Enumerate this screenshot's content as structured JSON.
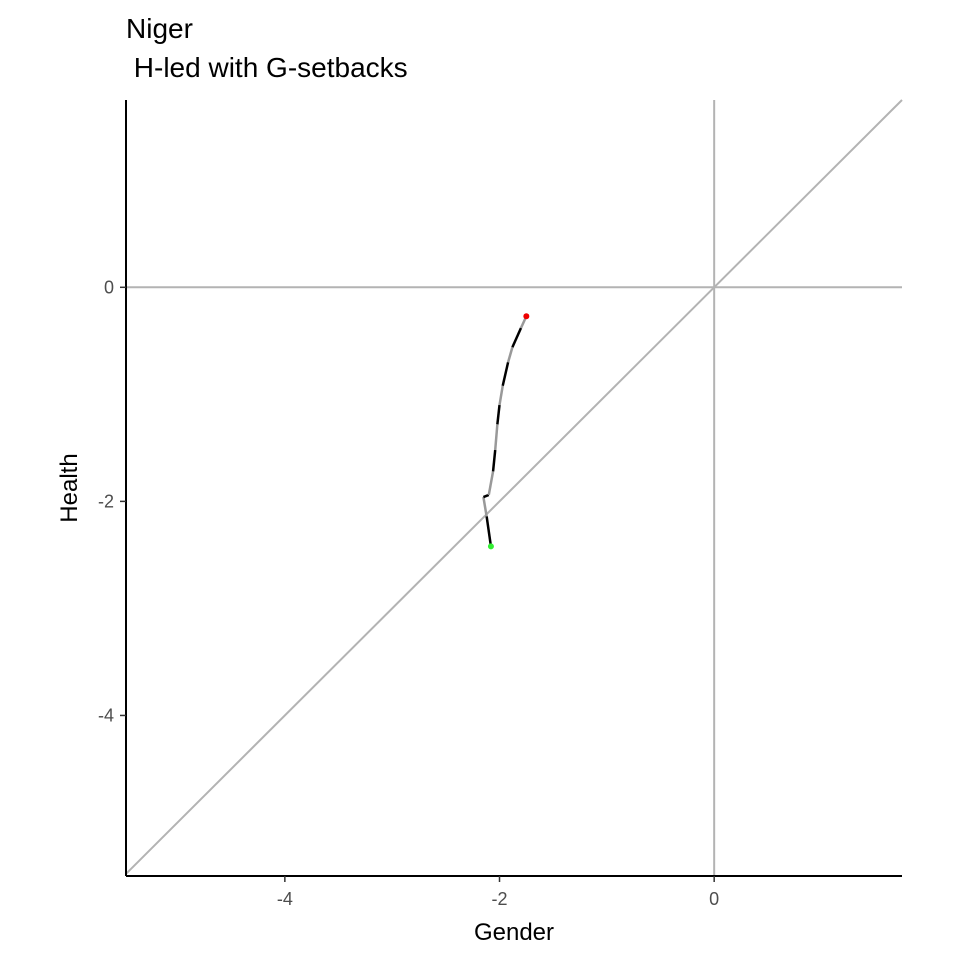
{
  "chart_data": {
    "type": "line",
    "title": "Niger",
    "subtitle": " H-led with G-setbacks",
    "xlabel": "Gender",
    "ylabel": "Health",
    "xlim": [
      -5.48,
      1.75
    ],
    "ylim": [
      -5.5,
      1.75
    ],
    "xticks": [
      -4,
      -2,
      0
    ],
    "yticks": [
      0,
      -2,
      -4
    ],
    "grid": false,
    "reference_lines": [
      {
        "kind": "hline",
        "value": 0,
        "color": "#b3b3b3"
      },
      {
        "kind": "vline",
        "value": 0,
        "color": "#b3b3b3"
      },
      {
        "kind": "diagonal",
        "slope": 1,
        "intercept": 0,
        "color": "#b3b3b3"
      }
    ],
    "series": [
      {
        "points": [
          {
            "x": -2.08,
            "y": -2.42
          },
          {
            "x": -2.12,
            "y": -2.14
          },
          {
            "x": -2.15,
            "y": -1.96
          },
          {
            "x": -2.1,
            "y": -1.94
          },
          {
            "x": -2.06,
            "y": -1.72
          },
          {
            "x": -2.04,
            "y": -1.52
          },
          {
            "x": -2.02,
            "y": -1.28
          },
          {
            "x": -2.0,
            "y": -1.1
          },
          {
            "x": -1.97,
            "y": -0.92
          },
          {
            "x": -1.92,
            "y": -0.7
          },
          {
            "x": -1.88,
            "y": -0.56
          },
          {
            "x": -1.8,
            "y": -0.38
          },
          {
            "x": -1.75,
            "y": -0.27
          }
        ],
        "segment_colors": [
          "#000000",
          "#999999",
          "#000000",
          "#999999",
          "#000000",
          "#999999",
          "#000000",
          "#999999",
          "#000000",
          "#999999",
          "#000000",
          "#999999"
        ],
        "start_color": "#33ee33",
        "end_color": "#ee0000"
      }
    ]
  }
}
